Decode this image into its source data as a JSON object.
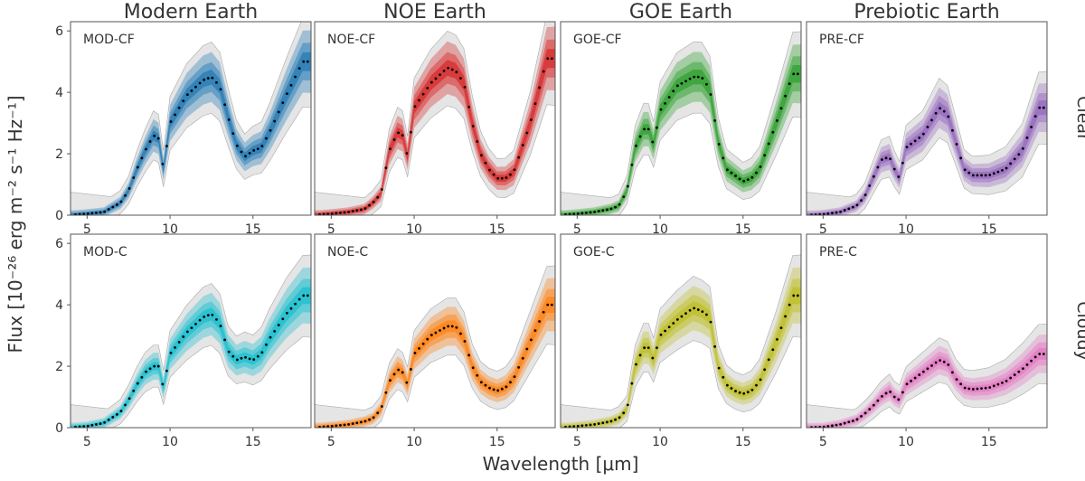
{
  "chart_data": {
    "type": "area",
    "columns": [
      "Modern Earth",
      "NOE Earth",
      "GOE Earth",
      "Prebiotic Earth"
    ],
    "rows": [
      "Clear",
      "Cloudy"
    ],
    "xlabel": "Wavelength [μm]",
    "ylabel": "Flux [10⁻²⁶ erg m⁻² s⁻¹ Hz⁻¹]",
    "xlim": [
      4,
      18.5
    ],
    "ylim": [
      0,
      6.3
    ],
    "xticks": [
      5,
      10,
      15
    ],
    "yticks": [
      0,
      2,
      4,
      6
    ],
    "grid": false,
    "panels": [
      {
        "label": "MOD-CF",
        "row": 0,
        "col": 0,
        "color": "#1f77b4",
        "x": [
          4.3,
          5,
          6,
          7,
          7.5,
          8,
          8.5,
          9,
          9.3,
          9.6,
          10,
          11,
          12,
          12.5,
          13,
          13.5,
          14,
          14.5,
          15,
          15.5,
          16,
          17,
          18
        ],
        "y": [
          0.02,
          0.05,
          0.1,
          0.4,
          0.8,
          1.5,
          2.1,
          2.6,
          2.5,
          1.5,
          3.0,
          3.9,
          4.4,
          4.5,
          4.2,
          3.2,
          2.3,
          1.9,
          2.1,
          2.2,
          2.7,
          3.9,
          5.0
        ]
      },
      {
        "label": "NOE-CF",
        "row": 0,
        "col": 1,
        "color": "#d62728",
        "x": [
          4.3,
          5,
          6,
          7,
          7.5,
          8,
          8.5,
          9,
          9.3,
          9.6,
          10,
          11,
          12,
          12.5,
          13,
          13.5,
          14,
          14.5,
          15,
          15.5,
          16,
          17,
          18
        ],
        "y": [
          0.02,
          0.05,
          0.1,
          0.2,
          0.4,
          0.7,
          2.1,
          2.7,
          2.6,
          1.9,
          3.5,
          4.3,
          4.8,
          4.7,
          4.3,
          3.0,
          2.0,
          1.5,
          1.2,
          1.2,
          1.4,
          3.0,
          5.1
        ]
      },
      {
        "label": "GOE-CF",
        "row": 0,
        "col": 2,
        "color": "#2ca02c",
        "x": [
          4.3,
          5,
          6,
          7,
          7.5,
          8,
          8.5,
          9,
          9.3,
          9.6,
          10,
          11,
          12,
          12.5,
          13,
          13.5,
          14,
          14.5,
          15,
          15.5,
          16,
          17,
          18
        ],
        "y": [
          0.02,
          0.05,
          0.1,
          0.2,
          0.3,
          0.8,
          2.2,
          2.8,
          2.8,
          2.3,
          3.4,
          4.2,
          4.5,
          4.5,
          4.1,
          2.4,
          1.5,
          1.3,
          1.1,
          1.2,
          1.5,
          3.0,
          4.6
        ]
      },
      {
        "label": "PRE-CF",
        "row": 0,
        "col": 3,
        "color": "#9467bd",
        "x": [
          4.3,
          5,
          6,
          7,
          7.5,
          8,
          8.5,
          9,
          9.3,
          9.6,
          10,
          11,
          12,
          12.5,
          13,
          13.5,
          14,
          15,
          16,
          17,
          18
        ],
        "y": [
          0.01,
          0.03,
          0.1,
          0.3,
          0.6,
          1.2,
          1.8,
          1.9,
          1.5,
          1.2,
          2.2,
          2.6,
          3.5,
          3.3,
          2.4,
          1.5,
          1.3,
          1.3,
          1.5,
          2.1,
          3.5
        ]
      },
      {
        "label": "MOD-C",
        "row": 1,
        "col": 0,
        "color": "#17becf",
        "x": [
          4.3,
          5,
          6,
          7,
          7.5,
          8,
          8.5,
          9,
          9.3,
          9.6,
          10,
          11,
          12,
          12.5,
          13,
          13.5,
          14,
          14.5,
          15,
          15.5,
          16,
          17,
          18
        ],
        "y": [
          0.02,
          0.05,
          0.15,
          0.5,
          0.9,
          1.4,
          1.8,
          2.0,
          2.0,
          1.3,
          2.4,
          3.1,
          3.6,
          3.7,
          3.4,
          2.5,
          2.2,
          2.3,
          2.2,
          2.4,
          2.9,
          3.7,
          4.3
        ]
      },
      {
        "label": "NOE-C",
        "row": 1,
        "col": 1,
        "color": "#ff7f0e",
        "x": [
          4.3,
          5,
          6,
          7,
          7.5,
          8,
          8.5,
          9,
          9.3,
          9.6,
          10,
          11,
          12,
          12.5,
          13,
          13.5,
          14,
          14.5,
          15,
          15.5,
          16,
          17,
          18
        ],
        "y": [
          0.02,
          0.05,
          0.1,
          0.2,
          0.3,
          0.6,
          1.5,
          1.9,
          1.8,
          1.4,
          2.4,
          3.0,
          3.3,
          3.3,
          2.9,
          2.0,
          1.5,
          1.3,
          1.2,
          1.3,
          1.6,
          2.8,
          4.0
        ]
      },
      {
        "label": "GOE-C",
        "row": 1,
        "col": 2,
        "color": "#bcbd22",
        "x": [
          4.3,
          5,
          6,
          7,
          7.5,
          8,
          8.5,
          9,
          9.3,
          9.6,
          10,
          11,
          12,
          12.5,
          13,
          13.5,
          14,
          14.5,
          15,
          15.5,
          16,
          17,
          18
        ],
        "y": [
          0.02,
          0.05,
          0.1,
          0.2,
          0.3,
          0.6,
          2.0,
          2.6,
          2.6,
          2.2,
          3.0,
          3.5,
          3.9,
          3.8,
          3.6,
          2.0,
          1.4,
          1.2,
          1.1,
          1.2,
          1.5,
          2.8,
          4.3
        ]
      },
      {
        "label": "PRE-C",
        "row": 1,
        "col": 3,
        "color": "#e377c2",
        "x": [
          4.3,
          5,
          6,
          7,
          7.5,
          8,
          8.5,
          9,
          9.3,
          9.6,
          10,
          11,
          12,
          12.5,
          13,
          13.5,
          14,
          15,
          16,
          17,
          18
        ],
        "y": [
          0.01,
          0.02,
          0.1,
          0.25,
          0.45,
          0.7,
          1.0,
          1.2,
          1.0,
          0.9,
          1.4,
          1.8,
          2.2,
          2.1,
          1.6,
          1.3,
          1.25,
          1.3,
          1.5,
          1.9,
          2.4
        ]
      }
    ]
  }
}
